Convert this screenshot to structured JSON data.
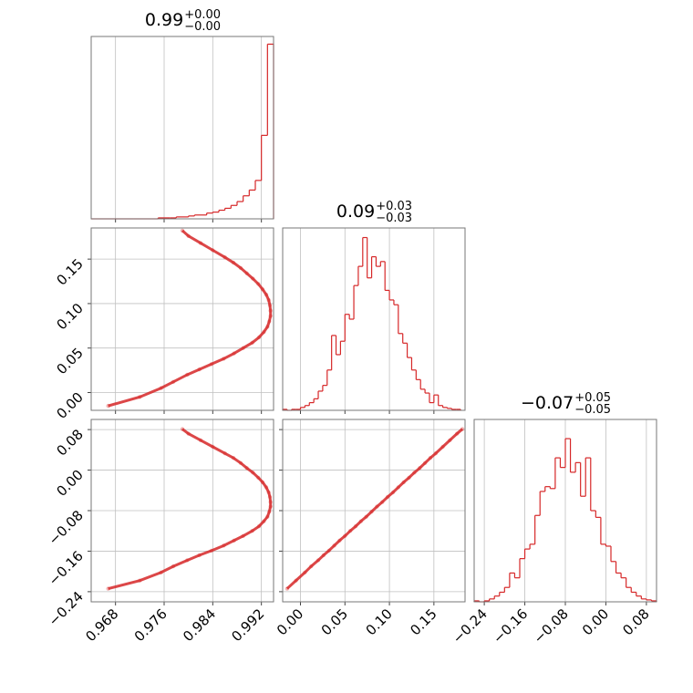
{
  "chart_data": [
    {
      "type": "histogram",
      "title": "0.99",
      "title_sup": "+0.00",
      "title_sub": "−0.00",
      "color": "#d62728",
      "grid": true,
      "bins": [
        0.964,
        0.965,
        0.966,
        0.967,
        0.968,
        0.969,
        0.97,
        0.971,
        0.972,
        0.973,
        0.974,
        0.975,
        0.976,
        0.977,
        0.978,
        0.979,
        0.98,
        0.981,
        0.982,
        0.983,
        0.984,
        0.985,
        0.986,
        0.987,
        0.988,
        0.989,
        0.99,
        0.991,
        0.992,
        0.993,
        0.994
      ],
      "values": [
        0,
        0,
        0,
        0,
        0,
        0,
        0,
        0,
        0,
        0,
        0,
        1,
        1,
        1,
        2,
        2,
        3,
        4,
        4,
        6,
        7,
        9,
        11,
        14,
        18,
        24,
        30,
        40,
        87,
        182
      ],
      "xlim": [
        0.964,
        0.994
      ],
      "ylim": [
        0,
        190
      ],
      "xticks": [
        0.968,
        0.976,
        0.984,
        0.992
      ]
    },
    {
      "type": "scatter",
      "color": "#d62728",
      "grid": true,
      "x": [
        0.9668,
        0.972,
        0.9755,
        0.9775,
        0.9798,
        0.9818,
        0.9838,
        0.9858,
        0.9875,
        0.989,
        0.9905,
        0.9916,
        0.9924,
        0.993,
        0.9933,
        0.9935,
        0.9935,
        0.9934,
        0.9932,
        0.9928,
        0.9922,
        0.9915,
        0.9906,
        0.9896,
        0.9886,
        0.9874,
        0.986,
        0.984,
        0.982,
        0.98,
        0.979
      ],
      "y": [
        -0.015,
        -0.005,
        0.005,
        0.012,
        0.02,
        0.026,
        0.032,
        0.038,
        0.044,
        0.05,
        0.056,
        0.062,
        0.068,
        0.074,
        0.08,
        0.086,
        0.092,
        0.098,
        0.104,
        0.11,
        0.116,
        0.122,
        0.128,
        0.134,
        0.14,
        0.146,
        0.152,
        0.16,
        0.168,
        0.176,
        0.182
      ],
      "xlim": [
        0.964,
        0.994
      ],
      "ylim": [
        -0.02,
        0.185
      ],
      "xticks": [
        0.968,
        0.976,
        0.984,
        0.992
      ],
      "yticks": [
        {
          "value": 0,
          "label": "0.00"
        },
        0.05,
        {
          "value": 0.1,
          "label": "0.10"
        },
        0.15
      ]
    },
    {
      "type": "histogram",
      "title": "0.09",
      "title_sup": "+0.03",
      "title_sub": "−0.03",
      "color": "#d62728",
      "grid": true,
      "bins": [
        -0.02,
        -0.015,
        -0.01,
        -0.005,
        0,
        0.005,
        0.01,
        0.015,
        0.02,
        0.025,
        0.03,
        0.035,
        0.04,
        0.045,
        0.05,
        0.055,
        0.06,
        0.065,
        0.07,
        0.075,
        0.08,
        0.085,
        0.09,
        0.095,
        0.1,
        0.105,
        0.11,
        0.115,
        0.12,
        0.125,
        0.13,
        0.135,
        0.14,
        0.145,
        0.15,
        0.155,
        0.16,
        0.165,
        0.17,
        0.175,
        0.18
      ],
      "values": [
        1,
        0,
        1,
        1,
        3,
        5,
        8,
        12,
        20,
        26,
        42,
        78,
        58,
        72,
        100,
        95,
        130,
        150,
        180,
        138,
        160,
        150,
        155,
        125,
        115,
        110,
        80,
        70,
        55,
        42,
        32,
        22,
        18,
        8,
        16,
        5,
        3,
        2,
        1,
        1
      ],
      "xlim": [
        -0.02,
        0.185
      ],
      "ylim": [
        0,
        190
      ],
      "xticks": [
        {
          "value": 0,
          "label": "0.00"
        },
        0.05,
        {
          "value": 0.1,
          "label": "0.10"
        },
        0.15
      ]
    },
    {
      "type": "scatter",
      "color": "#d62728",
      "grid": true,
      "x": [
        0.9668,
        0.972,
        0.9755,
        0.9775,
        0.9798,
        0.9818,
        0.9838,
        0.9858,
        0.9875,
        0.989,
        0.9905,
        0.9916,
        0.9924,
        0.993,
        0.9933,
        0.9935,
        0.9935,
        0.9934,
        0.9932,
        0.9928,
        0.9922,
        0.9915,
        0.9906,
        0.9896,
        0.9886,
        0.9874,
        0.986,
        0.984,
        0.982,
        0.98,
        0.979
      ],
      "y": [
        -0.234,
        -0.218,
        -0.202,
        -0.19,
        -0.178,
        -0.168,
        -0.159,
        -0.149,
        -0.139,
        -0.13,
        -0.12,
        -0.111,
        -0.101,
        -0.092,
        -0.082,
        -0.072,
        -0.063,
        -0.053,
        -0.044,
        -0.034,
        -0.024,
        -0.015,
        -0.005,
        0.004,
        0.014,
        0.024,
        0.033,
        0.046,
        0.059,
        0.072,
        0.081
      ],
      "xlim": [
        0.964,
        0.994
      ],
      "ylim": [
        -0.26,
        0.1
      ],
      "xticks": [
        0.968,
        0.976,
        0.984,
        0.992
      ],
      "yticks": [
        {
          "value": -0.24,
          "label": "−0.24"
        },
        {
          "value": -0.16,
          "label": "−0.16"
        },
        {
          "value": -0.08,
          "label": "−0.08"
        },
        {
          "value": 0,
          "label": "0.00"
        },
        0.08
      ]
    },
    {
      "type": "scatter",
      "color": "#d62728",
      "grid": true,
      "x": [
        -0.015,
        -0.005,
        0.005,
        0.012,
        0.02,
        0.026,
        0.032,
        0.038,
        0.044,
        0.05,
        0.056,
        0.062,
        0.068,
        0.074,
        0.08,
        0.086,
        0.092,
        0.098,
        0.104,
        0.11,
        0.116,
        0.122,
        0.128,
        0.134,
        0.14,
        0.146,
        0.152,
        0.16,
        0.168,
        0.176,
        0.182
      ],
      "y": [
        -0.234,
        -0.218,
        -0.202,
        -0.19,
        -0.178,
        -0.168,
        -0.159,
        -0.149,
        -0.139,
        -0.13,
        -0.12,
        -0.111,
        -0.101,
        -0.092,
        -0.082,
        -0.072,
        -0.063,
        -0.053,
        -0.044,
        -0.034,
        -0.024,
        -0.015,
        -0.005,
        0.004,
        0.014,
        0.024,
        0.033,
        0.046,
        0.059,
        0.072,
        0.081
      ],
      "xlim": [
        -0.02,
        0.185
      ],
      "ylim": [
        -0.26,
        0.1
      ],
      "xticks": [
        {
          "value": 0,
          "label": "0.00"
        },
        0.05,
        {
          "value": 0.1,
          "label": "0.10"
        },
        0.15
      ],
      "yticks": [
        {
          "value": -0.24,
          "label": "−0.24"
        },
        {
          "value": -0.16,
          "label": "−0.16"
        },
        {
          "value": -0.08,
          "label": "−0.08"
        },
        {
          "value": 0,
          "label": "0.00"
        },
        0.08
      ]
    },
    {
      "type": "histogram",
      "title": "−0.07",
      "title_sup": "+0.05",
      "title_sub": "−0.05",
      "color": "#d62728",
      "grid": true,
      "bins": [
        -0.26,
        -0.25,
        -0.24,
        -0.23,
        -0.22,
        -0.21,
        -0.2,
        -0.19,
        -0.18,
        -0.17,
        -0.16,
        -0.15,
        -0.14,
        -0.13,
        -0.12,
        -0.11,
        -0.1,
        -0.09,
        -0.08,
        -0.07,
        -0.06,
        -0.05,
        -0.04,
        -0.03,
        -0.02,
        -0.01,
        0,
        0.01,
        0.02,
        0.03,
        0.04,
        0.05,
        0.06,
        0.07,
        0.08,
        0.09,
        0.1
      ],
      "values": [
        1,
        0,
        1,
        3,
        6,
        10,
        15,
        30,
        25,
        45,
        55,
        60,
        90,
        115,
        120,
        118,
        150,
        140,
        170,
        135,
        145,
        110,
        150,
        95,
        88,
        60,
        58,
        42,
        30,
        25,
        15,
        10,
        6,
        3,
        2,
        1
      ],
      "xlim": [
        -0.26,
        0.1
      ],
      "ylim": [
        0,
        190
      ],
      "xticks": [
        {
          "value": -0.24,
          "label": "−0.24"
        },
        {
          "value": -0.16,
          "label": "−0.16"
        },
        {
          "value": -0.08,
          "label": "−0.08"
        },
        {
          "value": 0,
          "label": "0.00"
        },
        0.08
      ]
    }
  ]
}
